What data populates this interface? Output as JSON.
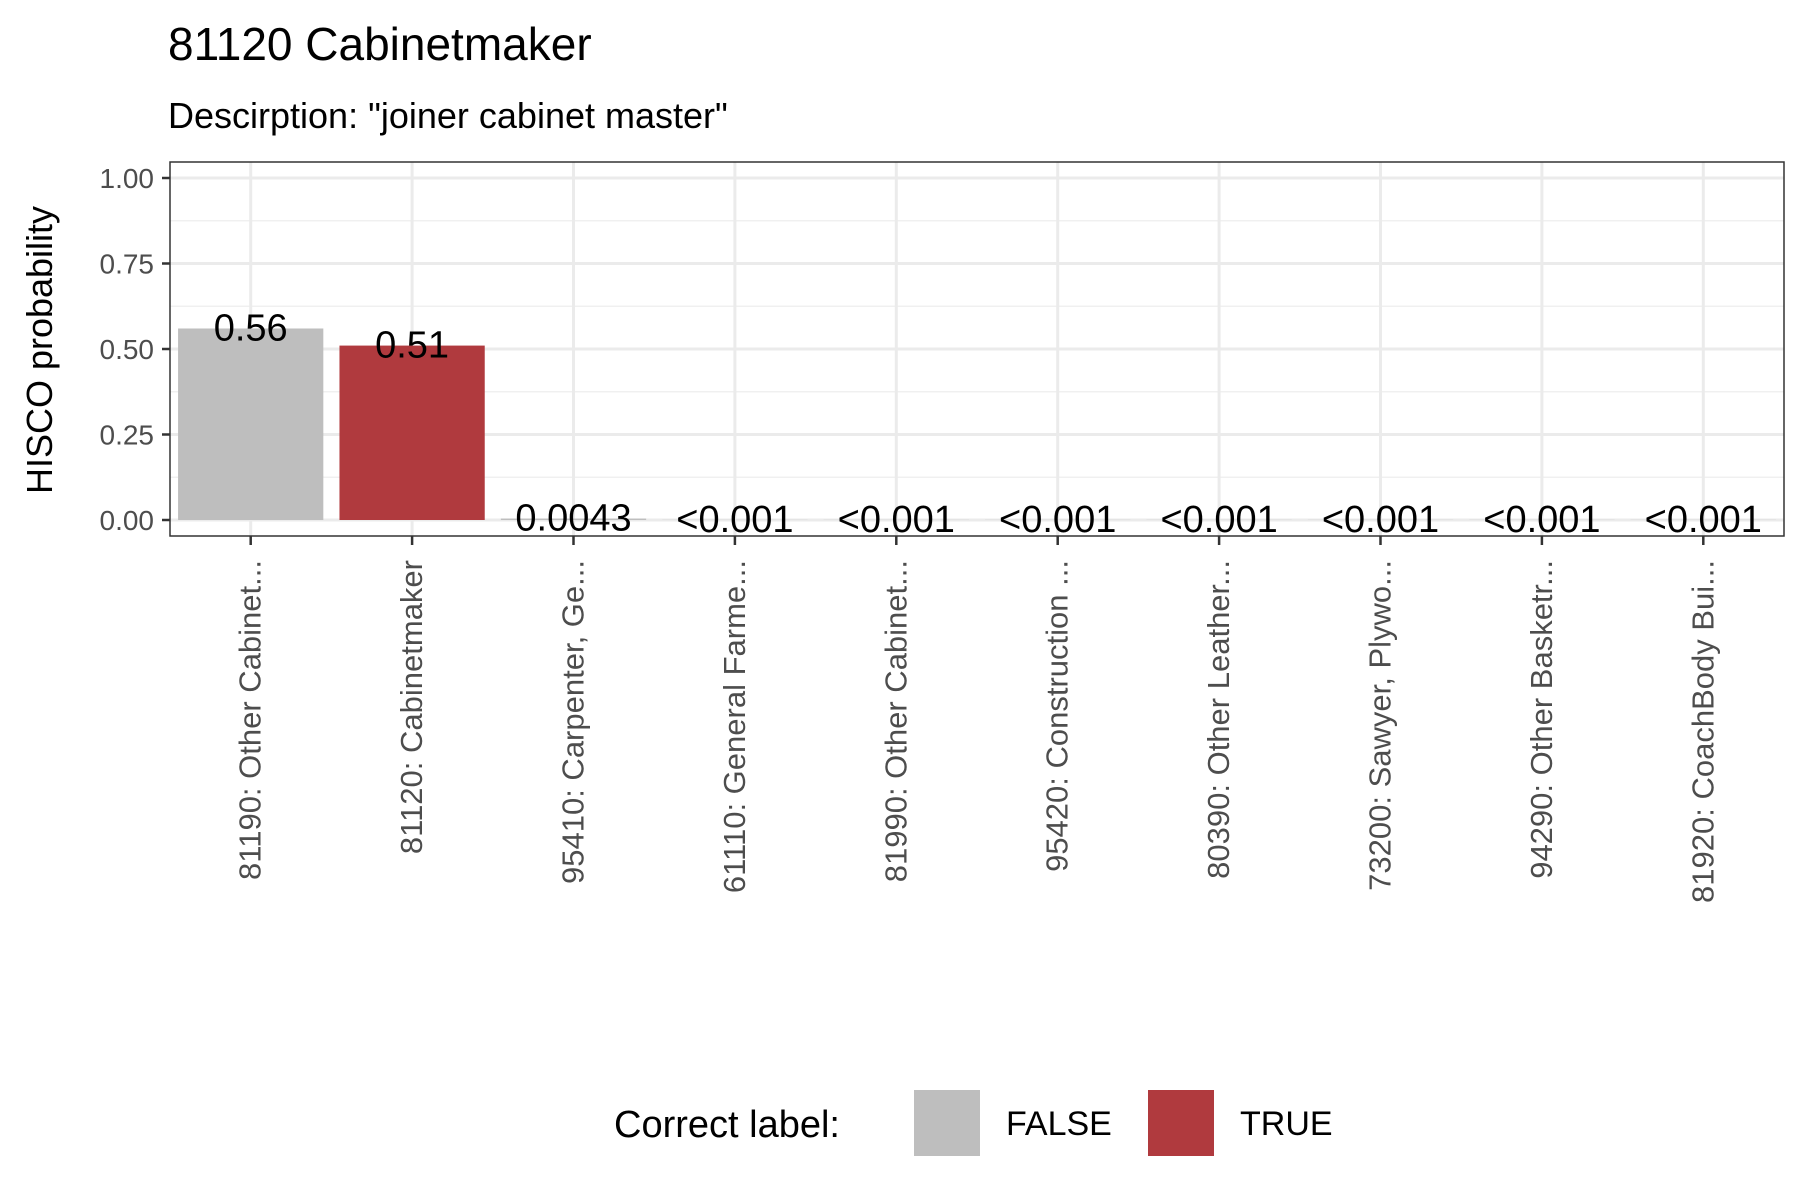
{
  "chart_data": {
    "type": "bar",
    "title": "81120 Cabinetmaker",
    "subtitle": "Descirption: \"joiner cabinet master\"",
    "ylabel": "HISCO probability",
    "xlabel": "",
    "ylim": [
      0,
      1.0
    ],
    "yticks": [
      "0.00",
      "0.25",
      "0.50",
      "0.75",
      "1.00"
    ],
    "ytick_values": [
      0,
      0.25,
      0.5,
      0.75,
      1.0
    ],
    "grid": true,
    "categories": [
      "81190: Other Cabinet...",
      "81120: Cabinetmaker",
      "95410: Carpenter, Ge...",
      "61110: General Farme...",
      "81990: Other Cabinet...",
      "95420: Construction ...",
      "80390: Other Leather...",
      "73200: Sawyer, Plywo...",
      "94290: Other Basketr...",
      "81920: CoachBody Bui..."
    ],
    "values": [
      0.56,
      0.51,
      0.0043,
      0.0005,
      0.0005,
      0.0005,
      0.0005,
      0.0005,
      0.0005,
      0.0005
    ],
    "value_labels": [
      "0.56",
      "0.51",
      "0.0043",
      "<0.001",
      "<0.001",
      "<0.001",
      "<0.001",
      "<0.001",
      "<0.001",
      "<0.001"
    ],
    "correct": [
      "FALSE",
      "TRUE",
      "FALSE",
      "FALSE",
      "FALSE",
      "FALSE",
      "FALSE",
      "FALSE",
      "FALSE",
      "FALSE"
    ],
    "legend": {
      "title": "Correct label:",
      "placement": "bottom",
      "entries": [
        {
          "label": "FALSE",
          "color": "#bebebe"
        },
        {
          "label": "TRUE",
          "color": "#b03a3e"
        }
      ]
    },
    "colors": {
      "FALSE": "#bebebe",
      "TRUE": "#b03a3e"
    }
  }
}
